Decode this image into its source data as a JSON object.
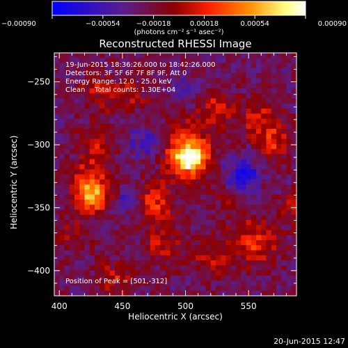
{
  "chart_data": {
    "type": "heatmap",
    "title": "Reconstructed RHESSI Image",
    "xlabel": "Heliocentric X (arcsec)",
    "ylabel": "Heliocentric Y (arcsec)",
    "xlim": [
      396,
      588
    ],
    "ylim": [
      -420,
      -227
    ],
    "x_ticks": [
      400,
      450,
      500,
      550
    ],
    "y_ticks": [
      -250,
      -300,
      -350,
      -400
    ],
    "x_tick_labels": [
      "400",
      "450",
      "500",
      "550"
    ],
    "y_tick_labels": [
      "−250",
      "−300",
      "−350",
      "−400"
    ],
    "colorbar": {
      "ticks": [
        -0.0009,
        -0.00054,
        -0.00018,
        0.00018,
        0.00054,
        0.0009
      ],
      "tick_labels": [
        "−0.00090",
        "−0.00054",
        "−0.00018",
        "0.00018",
        "0.00054",
        "0.00090"
      ],
      "units": "(photons cm⁻² s⁻¹ asec⁻²)",
      "range": [
        -0.0009,
        0.0009
      ]
    },
    "info": {
      "time_range": "19-Jun-2015 18:36:26.000 to 18:42:26.000",
      "detectors": "Detectors: 3F 5F 6F 7F 8F 9F, Att 0",
      "energy": "Energy Range: 12.0 - 25.0 keV",
      "method": "Clean",
      "counts": "Total counts: 1.30E+04"
    },
    "peak_label": "Position of Peak = [501,-312]",
    "peak_position": [
      501,
      -312
    ],
    "colors": {
      "colormap": [
        "#0000ff",
        "#5a1e8c",
        "#8b0000",
        "#ff2000",
        "#ff9000",
        "#ffff80",
        "#ffffff"
      ]
    },
    "blobs": [
      {
        "x": 504,
        "y": -311,
        "peak": 0.0009,
        "sigma": 8
      },
      {
        "x": 499,
        "y": -305,
        "peak": 0.0005,
        "sigma": 16
      },
      {
        "x": 426,
        "y": -342,
        "peak": 0.00062,
        "sigma": 9
      },
      {
        "x": 424,
        "y": -328,
        "peak": 0.0004,
        "sigma": 11
      },
      {
        "x": 475,
        "y": -348,
        "peak": 0.0005,
        "sigma": 10
      },
      {
        "x": 430,
        "y": -300,
        "peak": 0.0003,
        "sigma": 10
      },
      {
        "x": 555,
        "y": -378,
        "peak": 0.00045,
        "sigma": 13
      },
      {
        "x": 560,
        "y": -280,
        "peak": 0.0004,
        "sigma": 11
      },
      {
        "x": 570,
        "y": -300,
        "peak": 0.00035,
        "sigma": 9
      },
      {
        "x": 455,
        "y": -260,
        "peak": 0.0003,
        "sigma": 9
      },
      {
        "x": 430,
        "y": -258,
        "peak": 0.00028,
        "sigma": 10
      },
      {
        "x": 525,
        "y": -270,
        "peak": 0.00035,
        "sigma": 9
      },
      {
        "x": 482,
        "y": -380,
        "peak": 0.00035,
        "sigma": 10
      },
      {
        "x": 445,
        "y": -405,
        "peak": 0.0003,
        "sigma": 10
      },
      {
        "x": 520,
        "y": -390,
        "peak": 0.0003,
        "sigma": 10
      },
      {
        "x": 585,
        "y": -350,
        "peak": 0.0003,
        "sigma": 8
      },
      {
        "x": 410,
        "y": -370,
        "peak": 0.00025,
        "sigma": 8
      },
      {
        "x": 535,
        "y": -345,
        "peak": 0.00025,
        "sigma": 8
      },
      {
        "x": 545,
        "y": -325,
        "peak": -0.0005,
        "sigma": 10
      },
      {
        "x": 470,
        "y": -300,
        "peak": -0.00035,
        "sigma": 10
      },
      {
        "x": 455,
        "y": -345,
        "peak": -0.0003,
        "sigma": 8
      },
      {
        "x": 500,
        "y": -255,
        "peak": -0.00025,
        "sigma": 8
      }
    ]
  },
  "footer": {
    "date": "20-Jun-2015 12:47"
  }
}
